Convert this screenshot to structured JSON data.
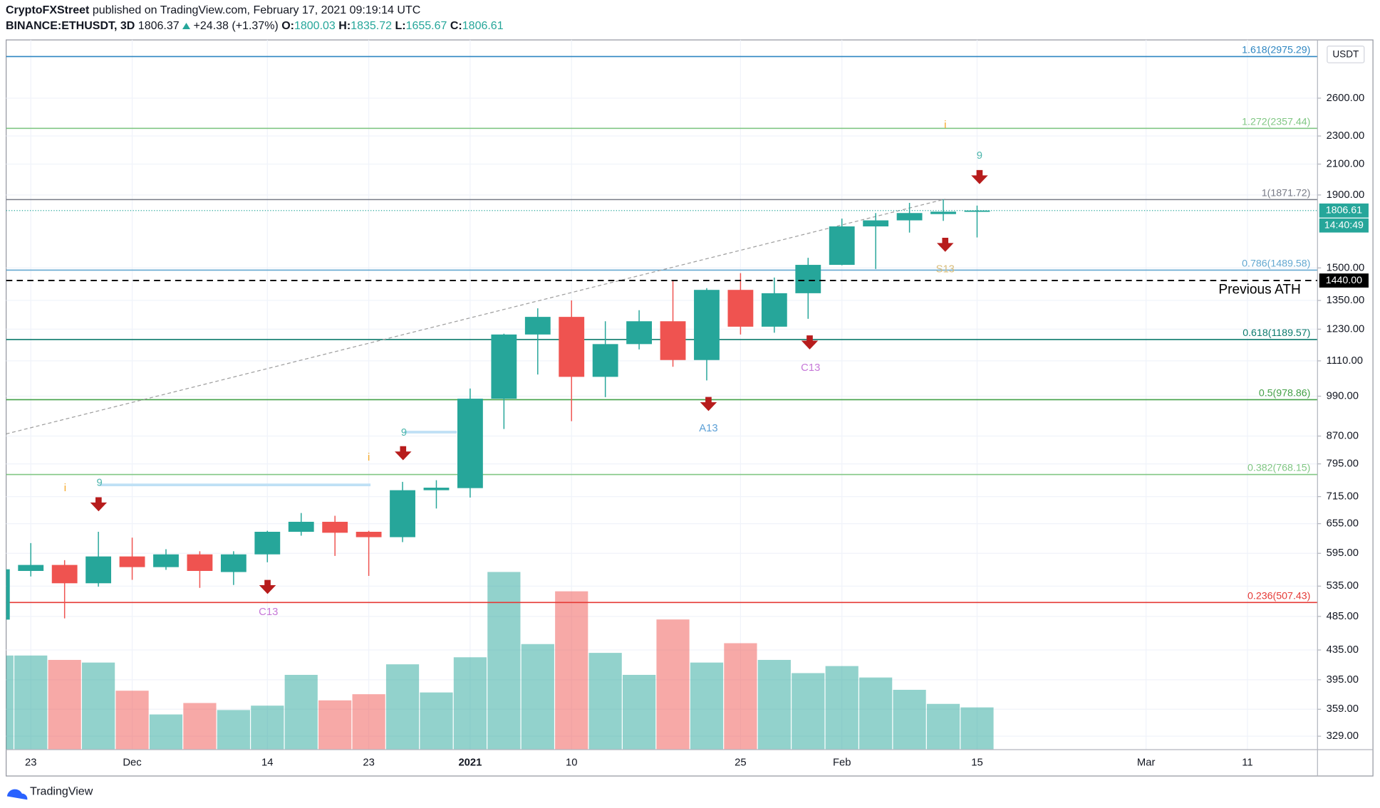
{
  "header": {
    "publisher": "CryptoFXStreet",
    "published": "published on TradingView.com, February 17, 2021 09:19:14 UTC",
    "symbol": "BINANCE:ETHUSDT, 3D",
    "last": "1806.37",
    "change": "+24.38 (+1.37%)",
    "ohlc": [
      {
        "key": "O:",
        "value": "1800.03"
      },
      {
        "key": "H:",
        "value": "1835.72"
      },
      {
        "key": "L:",
        "value": "1655.67"
      },
      {
        "key": "C:",
        "value": "1806.61"
      }
    ]
  },
  "footer": "TradingView",
  "chart_data": {
    "type": "candlestick",
    "log_scale": true,
    "grid": true,
    "up_color": "#26a69a",
    "down_color": "#ef5350",
    "currency": "USDT",
    "categories": [
      null,
      "23",
      null,
      null,
      "Dec",
      null,
      null,
      null,
      "14",
      null,
      null,
      "23",
      null,
      null,
      "2021",
      null,
      null,
      "10",
      null,
      null,
      null,
      null,
      "25",
      null,
      null,
      "Feb",
      null,
      null,
      null,
      "15",
      null,
      null,
      null,
      null,
      "Mar",
      null,
      null,
      "11",
      null
    ],
    "open": [
      480,
      562,
      573,
      540,
      589,
      569,
      593,
      560,
      593,
      638,
      659,
      638,
      627,
      730,
      735,
      982,
      1209,
      1280,
      1054,
      1172,
      1262,
      1113,
      1397,
      1240,
      1382,
      1515,
      1716,
      1750,
      1786,
      1800.03,
      null,
      null,
      null,
      null,
      null,
      null,
      null,
      null,
      null
    ],
    "high": [
      570,
      615,
      582,
      638,
      626,
      603,
      599,
      599,
      640,
      678,
      672,
      640,
      750,
      754,
      1015,
      1212,
      1316,
      1350,
      1262,
      1308,
      1441,
      1405,
      1475,
      1454,
      1550,
      1760,
      1792,
      1852,
      1873,
      1835.72,
      null,
      null,
      null,
      null,
      null,
      null,
      null,
      null,
      null
    ],
    "low": [
      478,
      552,
      482,
      534,
      546,
      564,
      532,
      537,
      578,
      630,
      590,
      553,
      617,
      688,
      713,
      890,
      1062,
      913,
      987,
      1152,
      1089,
      1042,
      1209,
      1216,
      1272,
      1513,
      1495,
      1682,
      1747,
      1655.67,
      null,
      null,
      null,
      null,
      null,
      null,
      null,
      null,
      null
    ],
    "close": [
      565,
      573,
      540,
      589,
      569,
      593,
      562,
      593,
      638,
      659,
      636,
      627,
      730,
      736,
      982,
      1209,
      1280,
      1054,
      1172,
      1262,
      1113,
      1397,
      1240,
      1382,
      1515,
      1716,
      1750,
      1792,
      1800,
      1806.61,
      null,
      null,
      null,
      null,
      null,
      null,
      null,
      null,
      null
    ],
    "volume": [
      107,
      107,
      102,
      99,
      67,
      40,
      53,
      45,
      50,
      85,
      56,
      63,
      97,
      65,
      105,
      202,
      120,
      180,
      110,
      85,
      148,
      99,
      121,
      102,
      87,
      95,
      82,
      68,
      52,
      48,
      null,
      null,
      null,
      null,
      null,
      null,
      null,
      null,
      null
    ],
    "ylim": [
      315,
      3140
    ],
    "yticks": [
      {
        "value": 2600,
        "label": "2600.00"
      },
      {
        "value": 2300,
        "label": "2300.00"
      },
      {
        "value": 2100,
        "label": "2100.00"
      },
      {
        "value": 1900,
        "label": "1900.00"
      },
      {
        "value": 1500,
        "label": "1500.00"
      },
      {
        "value": 1350,
        "label": "1350.00"
      },
      {
        "value": 1230,
        "label": "1230.00"
      },
      {
        "value": 1110,
        "label": "1110.00"
      },
      {
        "value": 990,
        "label": "990.00"
      },
      {
        "value": 870,
        "label": "870.00"
      },
      {
        "value": 795,
        "label": "795.00"
      },
      {
        "value": 715,
        "label": "715.00"
      },
      {
        "value": 655,
        "label": "655.00"
      },
      {
        "value": 595,
        "label": "595.00"
      },
      {
        "value": 535,
        "label": "535.00"
      },
      {
        "value": 485,
        "label": "485.00"
      },
      {
        "value": 435,
        "label": "435.00"
      },
      {
        "value": 395,
        "label": "395.00"
      },
      {
        "value": 359,
        "label": "359.00"
      },
      {
        "value": 329,
        "label": "329.00"
      }
    ],
    "levels": [
      {
        "label": "1.618(2975.29)",
        "value": 2975.29,
        "color": "#2e86c1"
      },
      {
        "label": "1.272(2357.44)",
        "value": 2357.44,
        "color": "#81c784"
      },
      {
        "label": "1(1871.72)",
        "value": 1871.72,
        "color": "#787b86"
      },
      {
        "label": "0.786(1489.58)",
        "value": 1489.58,
        "color": "#64a8d0"
      },
      {
        "label": "0.618(1189.57)",
        "value": 1189.57,
        "color": "#0b7a6c"
      },
      {
        "label": "0.5(978.86)",
        "value": 978.86,
        "color": "#43a047"
      },
      {
        "label": "0.382(768.15)",
        "value": 768.15,
        "color": "#81c784"
      },
      {
        "label": "0.236(507.43)",
        "value": 507.43,
        "color": "#e53935"
      }
    ],
    "last_price": {
      "value": 1806.61,
      "label": "1806.61",
      "countdown": "14:40:49"
    },
    "ath": {
      "value": 1440,
      "label": "1440.00",
      "text": "Previous ATH"
    },
    "annotations": [
      {
        "text": "9",
        "color": "#4db6ac"
      },
      {
        "text": "9",
        "color": "#4db6ac"
      },
      {
        "text": "9",
        "color": "#4db6ac"
      },
      {
        "text": "C13",
        "color": "#c678d8"
      },
      {
        "text": "C13",
        "color": "#c678d8"
      },
      {
        "text": "A13",
        "color": "#5b9fd6"
      },
      {
        "text": "S13",
        "color": "#d9bd7a"
      },
      {
        "text": "i",
        "color": "#f5a623"
      },
      {
        "text": "i",
        "color": "#f5a623"
      },
      {
        "text": "i",
        "color": "#f5a623"
      }
    ]
  }
}
